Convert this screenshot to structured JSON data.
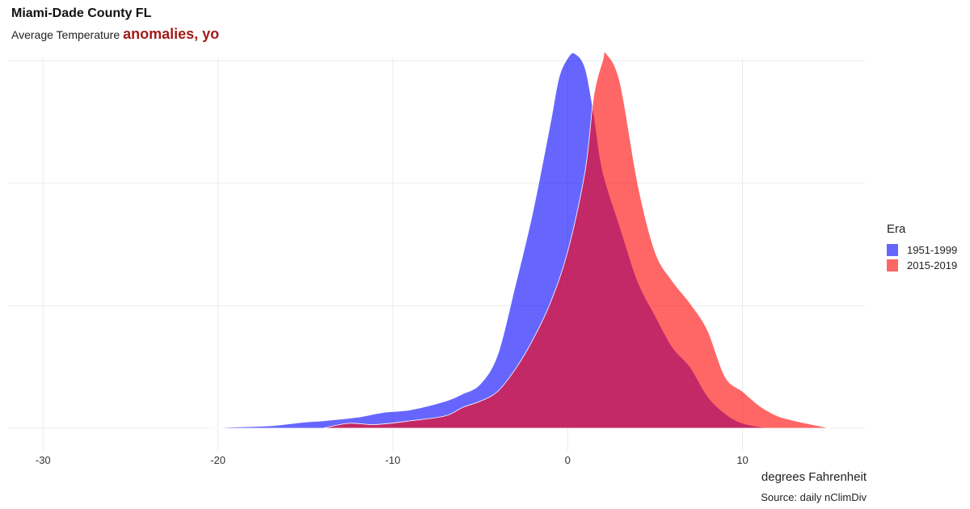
{
  "title": "Miami-Dade County FL",
  "subtitle": "Average Temperature",
  "subtitle_accent": "anomalies, yo",
  "caption": "Source: daily nClimDiv",
  "chart_data": {
    "type": "area",
    "subtype": "density",
    "title": "Miami-Dade County FL",
    "xlabel": "degrees Fahrenheit",
    "ylabel": "",
    "xlim": [
      -32,
      17
    ],
    "ylim": [
      0,
      0.155
    ],
    "x_ticks": [
      -30,
      -20,
      -10,
      0,
      10
    ],
    "grid": true,
    "legend": {
      "title": "Era",
      "position": "right"
    },
    "series": [
      {
        "name": "1951-1999",
        "color": "#6666ff",
        "points": [
          [
            -20.5,
            0
          ],
          [
            -19,
            0.0005
          ],
          [
            -17,
            0.001
          ],
          [
            -15,
            0.0025
          ],
          [
            -14,
            0.003
          ],
          [
            -12,
            0.0045
          ],
          [
            -10.5,
            0.0065
          ],
          [
            -9,
            0.0075
          ],
          [
            -7,
            0.011
          ],
          [
            -6,
            0.014
          ],
          [
            -5,
            0.018
          ],
          [
            -4,
            0.03
          ],
          [
            -3,
            0.058
          ],
          [
            -2,
            0.088
          ],
          [
            -1,
            0.124
          ],
          [
            -0.5,
            0.143
          ],
          [
            0,
            0.151
          ],
          [
            0.4,
            0.153
          ],
          [
            1,
            0.147
          ],
          [
            1.5,
            0.128
          ],
          [
            2,
            0.105
          ],
          [
            3,
            0.082
          ],
          [
            4,
            0.06
          ],
          [
            5,
            0.046
          ],
          [
            6,
            0.033
          ],
          [
            7,
            0.025
          ],
          [
            8,
            0.013
          ],
          [
            9,
            0.006
          ],
          [
            10,
            0.002
          ],
          [
            11.5,
            0
          ]
        ]
      },
      {
        "name": "2015-2019",
        "color": "#ff6666",
        "points": [
          [
            -14,
            0
          ],
          [
            -12.5,
            0.002
          ],
          [
            -11,
            0.0015
          ],
          [
            -9,
            0.003
          ],
          [
            -7,
            0.005
          ],
          [
            -6,
            0.0085
          ],
          [
            -5,
            0.011
          ],
          [
            -4,
            0.015
          ],
          [
            -3,
            0.024
          ],
          [
            -2,
            0.036
          ],
          [
            -1,
            0.051
          ],
          [
            0,
            0.072
          ],
          [
            1,
            0.105
          ],
          [
            1.5,
            0.136
          ],
          [
            2,
            0.15
          ],
          [
            2.2,
            0.153
          ],
          [
            3,
            0.141
          ],
          [
            4,
            0.1
          ],
          [
            5,
            0.072
          ],
          [
            6,
            0.06
          ],
          [
            7,
            0.051
          ],
          [
            8,
            0.04
          ],
          [
            9,
            0.021
          ],
          [
            10,
            0.015
          ],
          [
            11,
            0.009
          ],
          [
            12,
            0.005
          ],
          [
            13,
            0.003
          ],
          [
            14,
            0.0015
          ],
          [
            15,
            0
          ]
        ]
      }
    ]
  }
}
